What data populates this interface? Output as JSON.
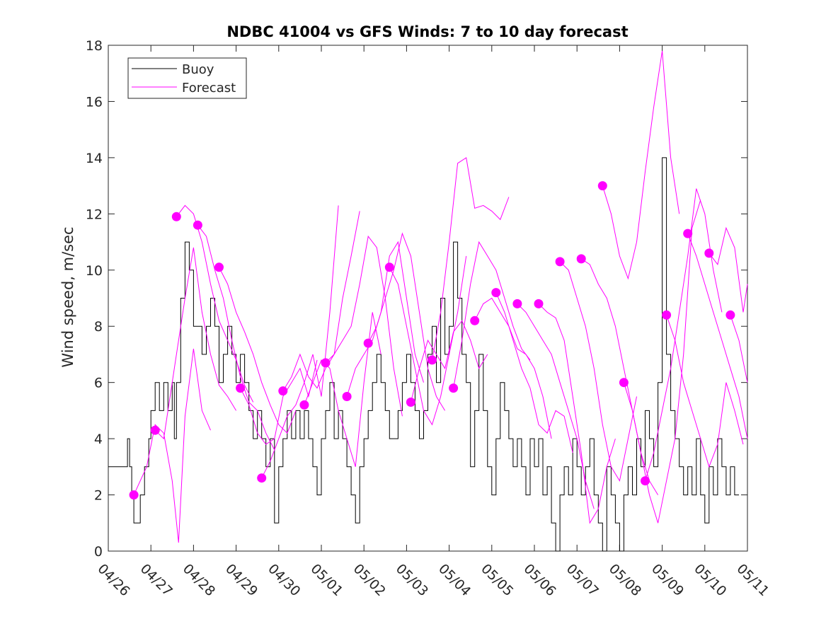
{
  "chart_data": {
    "type": "line",
    "title": "NDBC 41004 vs GFS Winds: 7 to 10 day forecast",
    "xlabel": "",
    "ylabel": "Wind speed, m/sec",
    "xlim": [
      "04/26",
      "05/11"
    ],
    "ylim": [
      0,
      18
    ],
    "y_ticks": [
      0,
      2,
      4,
      6,
      8,
      10,
      12,
      14,
      16,
      18
    ],
    "x_tick_labels": [
      "04/26",
      "04/27",
      "04/28",
      "04/29",
      "04/30",
      "05/01",
      "05/02",
      "05/03",
      "05/04",
      "05/05",
      "05/06",
      "05/07",
      "05/08",
      "05/09",
      "05/10",
      "05/11"
    ],
    "grid": false,
    "legend_position": "top-left",
    "legend": [
      {
        "label": "Buoy",
        "color": "#000000"
      },
      {
        "label": "Forecast",
        "color": "#ff00ff"
      }
    ],
    "buoy_series": {
      "name": "Buoy",
      "color": "#000000",
      "day_offset_from_0426": [
        0.0,
        0.2,
        0.4,
        0.45,
        0.5,
        0.55,
        0.6,
        0.65,
        0.75,
        0.85,
        0.95,
        1.0,
        1.1,
        1.2,
        1.3,
        1.4,
        1.5,
        1.55,
        1.6,
        1.7,
        1.8,
        1.9,
        2.0,
        2.1,
        2.2,
        2.3,
        2.4,
        2.5,
        2.6,
        2.7,
        2.8,
        2.9,
        3.0,
        3.1,
        3.2,
        3.3,
        3.4,
        3.5,
        3.6,
        3.7,
        3.8,
        3.9,
        4.0,
        4.1,
        4.2,
        4.3,
        4.4,
        4.5,
        4.6,
        4.7,
        4.8,
        4.9,
        5.0,
        5.1,
        5.2,
        5.3,
        5.4,
        5.5,
        5.6,
        5.7,
        5.8,
        5.9,
        6.0,
        6.1,
        6.2,
        6.3,
        6.4,
        6.5,
        6.6,
        6.7,
        6.8,
        6.9,
        7.0,
        7.1,
        7.2,
        7.3,
        7.4,
        7.5,
        7.6,
        7.7,
        7.8,
        7.9,
        8.0,
        8.1,
        8.2,
        8.3,
        8.4,
        8.5,
        8.6,
        8.7,
        8.8,
        8.9,
        9.0,
        9.1,
        9.2,
        9.3,
        9.4,
        9.5,
        9.6,
        9.7,
        9.8,
        9.9,
        10.0,
        10.1,
        10.2,
        10.3,
        10.4,
        10.5,
        10.6,
        10.7,
        10.8,
        10.9,
        11.0,
        11.1,
        11.2,
        11.3,
        11.4,
        11.5,
        11.6,
        11.7,
        11.8,
        11.9,
        12.0,
        12.1,
        12.2,
        12.3,
        12.4,
        12.5,
        12.6,
        12.7,
        12.8,
        12.9,
        13.0,
        13.1,
        13.2,
        13.3,
        13.4,
        13.5,
        13.6,
        13.7,
        13.8,
        13.9,
        14.0,
        14.1,
        14.2,
        14.3,
        14.4,
        14.5,
        14.6,
        14.7,
        14.8,
        14.9
      ],
      "values": [
        3,
        3,
        3,
        4,
        3,
        2,
        1,
        1,
        2,
        3,
        4,
        5,
        6,
        5,
        6,
        5,
        6,
        4,
        6,
        9,
        11,
        10,
        8,
        8,
        7,
        8,
        9,
        8,
        6,
        7,
        8,
        7,
        6,
        7,
        6,
        5,
        4,
        5,
        4,
        3,
        4,
        1,
        3,
        4,
        5,
        4,
        5,
        4,
        5,
        4,
        3,
        2,
        4,
        5,
        6,
        4,
        5,
        4,
        3,
        2,
        1,
        3,
        4,
        5,
        6,
        7,
        6,
        5,
        4,
        4,
        5,
        6,
        7,
        6,
        5,
        4,
        5,
        7,
        8,
        6,
        9,
        7,
        8,
        11,
        9,
        7,
        6,
        3,
        5,
        7,
        5,
        3,
        2,
        4,
        6,
        5,
        4,
        3,
        4,
        3,
        2,
        4,
        3,
        4,
        2,
        3,
        1,
        0,
        2,
        3,
        2,
        4,
        3,
        2,
        3,
        4,
        2,
        1,
        0,
        3,
        2,
        1,
        0,
        2,
        3,
        2,
        4,
        3,
        5,
        4,
        3,
        6,
        14,
        7,
        5,
        4,
        3,
        2,
        3,
        2,
        4,
        2,
        1,
        3,
        2,
        4,
        3,
        2,
        3,
        2
      ]
    },
    "forecast_runs": [
      {
        "days": [
          0.6,
          0.9,
          1.1,
          1.3,
          1.5,
          1.65,
          1.8,
          2.0,
          2.2,
          2.4
        ],
        "values": [
          2.0,
          3.0,
          4.5,
          4.2,
          2.5,
          0.3,
          4.8,
          7.2,
          5.0,
          4.3
        ]
      },
      {
        "days": [
          1.1,
          1.3,
          1.6,
          1.8,
          2.0,
          2.2,
          2.4,
          2.6,
          2.8,
          3.0
        ],
        "values": [
          4.3,
          4.0,
          7.0,
          9.0,
          10.8,
          8.5,
          7.0,
          5.9,
          5.5,
          5.0
        ]
      },
      {
        "days": [
          1.6,
          1.8,
          2.0,
          2.2,
          2.4,
          2.6,
          2.8,
          3.0,
          3.2,
          3.4
        ],
        "values": [
          11.9,
          12.3,
          12.0,
          11.0,
          9.5,
          8.2,
          7.5,
          6.8,
          5.9,
          5.3
        ]
      },
      {
        "days": [
          2.1,
          2.3,
          2.5,
          2.7,
          2.9,
          3.1,
          3.3,
          3.5,
          3.7,
          3.9
        ],
        "values": [
          11.6,
          11.2,
          10.0,
          9.0,
          7.5,
          6.2,
          5.3,
          5.0,
          4.2,
          3.6
        ]
      },
      {
        "days": [
          2.6,
          2.8,
          3.0,
          3.2,
          3.4,
          3.6,
          3.8,
          4.0,
          4.2,
          4.4
        ],
        "values": [
          10.1,
          9.5,
          8.5,
          7.8,
          7.0,
          6.0,
          5.2,
          4.5,
          4.2,
          5.0
        ]
      },
      {
        "days": [
          3.1,
          3.3,
          3.5,
          3.7,
          3.9,
          4.1,
          4.3,
          4.5,
          4.7,
          4.9
        ],
        "values": [
          5.8,
          5.2,
          4.2,
          3.8,
          4.0,
          5.5,
          6.0,
          6.5,
          5.5,
          6.8
        ]
      },
      {
        "days": [
          3.6,
          3.8,
          4.0,
          4.2,
          4.4,
          4.6,
          4.8,
          5.0,
          5.2,
          5.4
        ],
        "values": [
          2.6,
          3.2,
          4.0,
          4.8,
          5.2,
          6.0,
          7.0,
          5.5,
          8.5,
          12.3
        ]
      },
      {
        "days": [
          4.1,
          4.3,
          4.5,
          4.7,
          4.9,
          5.1,
          5.3,
          5.5,
          5.7,
          5.9
        ],
        "values": [
          5.7,
          6.2,
          7.0,
          6.2,
          5.8,
          6.5,
          7.0,
          9.0,
          10.5,
          12.1
        ]
      },
      {
        "days": [
          4.6,
          4.8,
          5.0,
          5.2,
          5.4,
          5.6,
          5.8,
          6.0,
          6.2,
          6.4
        ],
        "values": [
          5.2,
          6.0,
          6.8,
          6.5,
          5.0,
          4.0,
          3.0,
          6.0,
          8.5,
          7.0
        ]
      },
      {
        "days": [
          5.1,
          5.3,
          5.5,
          5.7,
          5.9,
          6.1,
          6.3,
          6.5,
          6.7,
          6.9
        ],
        "values": [
          6.7,
          7.0,
          7.5,
          8.0,
          9.5,
          11.2,
          10.8,
          9.0,
          6.5,
          4.8
        ]
      },
      {
        "days": [
          5.6,
          5.8,
          6.0,
          6.2,
          6.4,
          6.6,
          6.8,
          7.0,
          7.2,
          7.4
        ],
        "values": [
          5.5,
          6.5,
          7.0,
          7.5,
          8.5,
          10.5,
          11.0,
          9.0,
          7.0,
          6.0
        ]
      },
      {
        "days": [
          6.1,
          6.3,
          6.5,
          6.7,
          6.9,
          7.1,
          7.3,
          7.5,
          7.7,
          7.9
        ],
        "values": [
          7.4,
          8.0,
          9.0,
          10.0,
          11.3,
          10.5,
          8.5,
          6.5,
          5.5,
          5.0
        ]
      },
      {
        "days": [
          6.6,
          6.8,
          7.0,
          7.2,
          7.4,
          7.6,
          7.8,
          8.0,
          8.2,
          8.4
        ],
        "values": [
          10.1,
          9.5,
          8.0,
          6.5,
          5.0,
          4.5,
          5.5,
          7.0,
          8.5,
          10.5
        ]
      },
      {
        "days": [
          7.1,
          7.3,
          7.5,
          7.7,
          7.9,
          8.1,
          8.3,
          8.5,
          8.7,
          8.9
        ],
        "values": [
          5.3,
          6.5,
          7.5,
          7.0,
          6.5,
          7.8,
          8.2,
          7.5,
          6.5,
          7.0
        ]
      },
      {
        "days": [
          7.6,
          7.8,
          8.0,
          8.2,
          8.4,
          8.6,
          8.8,
          9.0,
          9.2,
          9.4
        ],
        "values": [
          6.8,
          8.5,
          11.0,
          13.8,
          14.0,
          12.2,
          12.3,
          12.1,
          11.8,
          12.6
        ]
      },
      {
        "days": [
          8.1,
          8.3,
          8.5,
          8.7,
          8.9,
          9.1,
          9.3,
          9.5,
          9.7,
          9.9
        ],
        "values": [
          5.8,
          7.5,
          9.5,
          11.0,
          10.5,
          10.0,
          9.0,
          8.0,
          7.2,
          6.8
        ]
      },
      {
        "days": [
          8.6,
          8.8,
          9.0,
          9.2,
          9.4,
          9.6,
          9.8,
          10.0,
          10.2,
          10.4
        ],
        "values": [
          8.2,
          8.8,
          9.0,
          8.5,
          8.0,
          7.2,
          7.0,
          6.5,
          5.5,
          4.0
        ]
      },
      {
        "days": [
          9.1,
          9.3,
          9.5,
          9.7,
          9.9,
          10.1,
          10.3,
          10.5,
          10.7,
          10.9
        ],
        "values": [
          9.2,
          8.5,
          7.5,
          6.5,
          5.8,
          4.5,
          4.2,
          5.0,
          4.8,
          3.5
        ]
      },
      {
        "days": [
          9.6,
          9.8,
          10.0,
          10.2,
          10.4,
          10.6,
          10.8,
          11.0,
          11.2,
          11.4
        ],
        "values": [
          8.8,
          8.5,
          8.0,
          7.5,
          7.0,
          6.0,
          5.0,
          4.0,
          2.5,
          1.5
        ]
      },
      {
        "days": [
          10.1,
          10.3,
          10.5,
          10.7,
          10.9,
          11.1,
          11.3,
          11.5,
          11.7,
          11.9
        ],
        "values": [
          8.8,
          8.5,
          8.3,
          7.5,
          5.5,
          3.5,
          1.0,
          1.5,
          3.0,
          4.0
        ]
      },
      {
        "days": [
          10.6,
          10.8,
          11.0,
          11.2,
          11.4,
          11.6,
          11.8,
          12.0,
          12.2,
          12.4
        ],
        "values": [
          10.3,
          10.0,
          9.0,
          8.0,
          6.5,
          4.5,
          3.0,
          2.5,
          4.0,
          5.5
        ]
      },
      {
        "days": [
          11.1,
          11.3,
          11.5,
          11.7,
          11.9,
          12.1,
          12.3,
          12.5,
          12.7,
          12.9
        ],
        "values": [
          10.4,
          10.2,
          9.5,
          9.0,
          8.0,
          6.5,
          5.0,
          3.5,
          2.5,
          2.0
        ]
      },
      {
        "days": [
          11.6,
          11.8,
          12.0,
          12.2,
          12.4,
          12.6,
          12.8,
          13.0,
          13.2,
          13.4
        ],
        "values": [
          13.0,
          12.0,
          10.5,
          9.7,
          11.0,
          13.5,
          15.8,
          17.8,
          14.0,
          12.0
        ]
      },
      {
        "days": [
          12.1,
          12.3,
          12.5,
          12.7,
          12.9,
          13.1,
          13.3,
          13.5,
          13.7,
          13.9
        ],
        "values": [
          6.0,
          5.0,
          3.5,
          2.0,
          1.0,
          2.5,
          4.0,
          7.0,
          11.5,
          12.5
        ]
      },
      {
        "days": [
          12.6,
          12.8,
          13.0,
          13.2,
          13.4,
          13.6,
          13.8,
          14.0,
          14.2,
          14.4
        ],
        "values": [
          2.5,
          3.5,
          5.0,
          6.5,
          8.5,
          10.5,
          12.9,
          12.0,
          10.0,
          8.5
        ]
      },
      {
        "days": [
          13.1,
          13.3,
          13.5,
          13.7,
          13.9,
          14.1,
          14.3,
          14.5,
          14.7,
          14.9
        ],
        "values": [
          8.4,
          7.5,
          6.0,
          5.0,
          4.0,
          3.0,
          3.8,
          6.0,
          5.0,
          3.8
        ]
      },
      {
        "days": [
          13.6,
          13.8,
          14.0,
          14.2,
          14.4,
          14.6,
          14.8,
          15.0
        ],
        "values": [
          11.3,
          10.5,
          9.5,
          8.5,
          7.5,
          6.5,
          5.5,
          4.0
        ]
      },
      {
        "days": [
          14.1,
          14.3,
          14.5,
          14.7,
          14.9,
          15.0
        ],
        "values": [
          10.6,
          10.2,
          11.5,
          10.8,
          8.5,
          9.5
        ]
      },
      {
        "days": [
          14.6,
          14.8,
          15.0
        ],
        "values": [
          8.4,
          7.5,
          6.0
        ]
      }
    ],
    "forecast_markers": {
      "days": [
        0.6,
        1.1,
        1.6,
        2.1,
        2.6,
        3.1,
        3.6,
        4.1,
        4.6,
        5.1,
        5.6,
        6.1,
        6.6,
        7.1,
        7.6,
        8.1,
        8.6,
        9.1,
        9.6,
        10.1,
        10.6,
        11.1,
        11.6,
        12.1,
        12.6,
        13.1,
        13.6,
        14.1,
        14.6
      ],
      "values": [
        2.0,
        4.3,
        11.9,
        11.6,
        10.1,
        5.8,
        2.6,
        5.7,
        5.2,
        6.7,
        5.5,
        7.4,
        10.1,
        5.3,
        6.8,
        5.8,
        8.2,
        9.2,
        8.8,
        8.8,
        10.3,
        10.4,
        13.0,
        6.0,
        2.5,
        8.4,
        11.3,
        10.6,
        8.4
      ]
    }
  }
}
